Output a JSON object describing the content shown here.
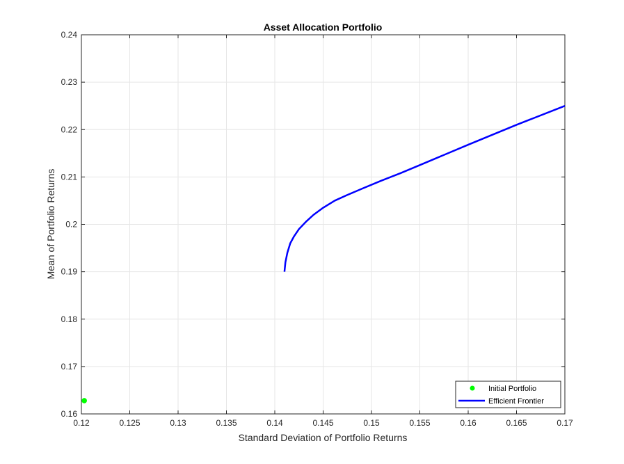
{
  "chart_data": {
    "type": "line",
    "title": "Asset Allocation Portfolio",
    "xlabel": "Standard Deviation of Portfolio Returns",
    "ylabel": "Mean of Portfolio Returns",
    "xlim": [
      0.12,
      0.17
    ],
    "ylim": [
      0.16,
      0.24
    ],
    "xticks": [
      0.12,
      0.125,
      0.13,
      0.135,
      0.14,
      0.145,
      0.15,
      0.155,
      0.16,
      0.165,
      0.17
    ],
    "yticks": [
      0.16,
      0.17,
      0.18,
      0.19,
      0.2,
      0.21,
      0.22,
      0.23,
      0.24
    ],
    "xtick_labels": [
      "0.12",
      "0.125",
      "0.13",
      "0.135",
      "0.14",
      "0.145",
      "0.15",
      "0.155",
      "0.16",
      "0.165",
      "0.17"
    ],
    "ytick_labels": [
      "0.16",
      "0.17",
      "0.18",
      "0.19",
      "0.2",
      "0.21",
      "0.22",
      "0.23",
      "0.24"
    ],
    "grid": true,
    "legend_position": "bottom-right",
    "series": [
      {
        "name": "Initial Portfolio",
        "type": "scatter",
        "color": "#00ff00",
        "x": [
          0.1203
        ],
        "y": [
          0.1628
        ]
      },
      {
        "name": "Efficient Frontier",
        "type": "line",
        "color": "#0000ff",
        "x": [
          0.141,
          0.1411,
          0.1413,
          0.1416,
          0.142,
          0.1425,
          0.1432,
          0.144,
          0.145,
          0.1462,
          0.1475,
          0.149,
          0.151,
          0.153,
          0.155,
          0.16,
          0.165,
          0.17
        ],
        "y": [
          0.19,
          0.192,
          0.194,
          0.196,
          0.1975,
          0.199,
          0.2005,
          0.202,
          0.2035,
          0.205,
          0.2062,
          0.2075,
          0.2092,
          0.2108,
          0.2125,
          0.2168,
          0.221,
          0.225
        ]
      }
    ]
  }
}
